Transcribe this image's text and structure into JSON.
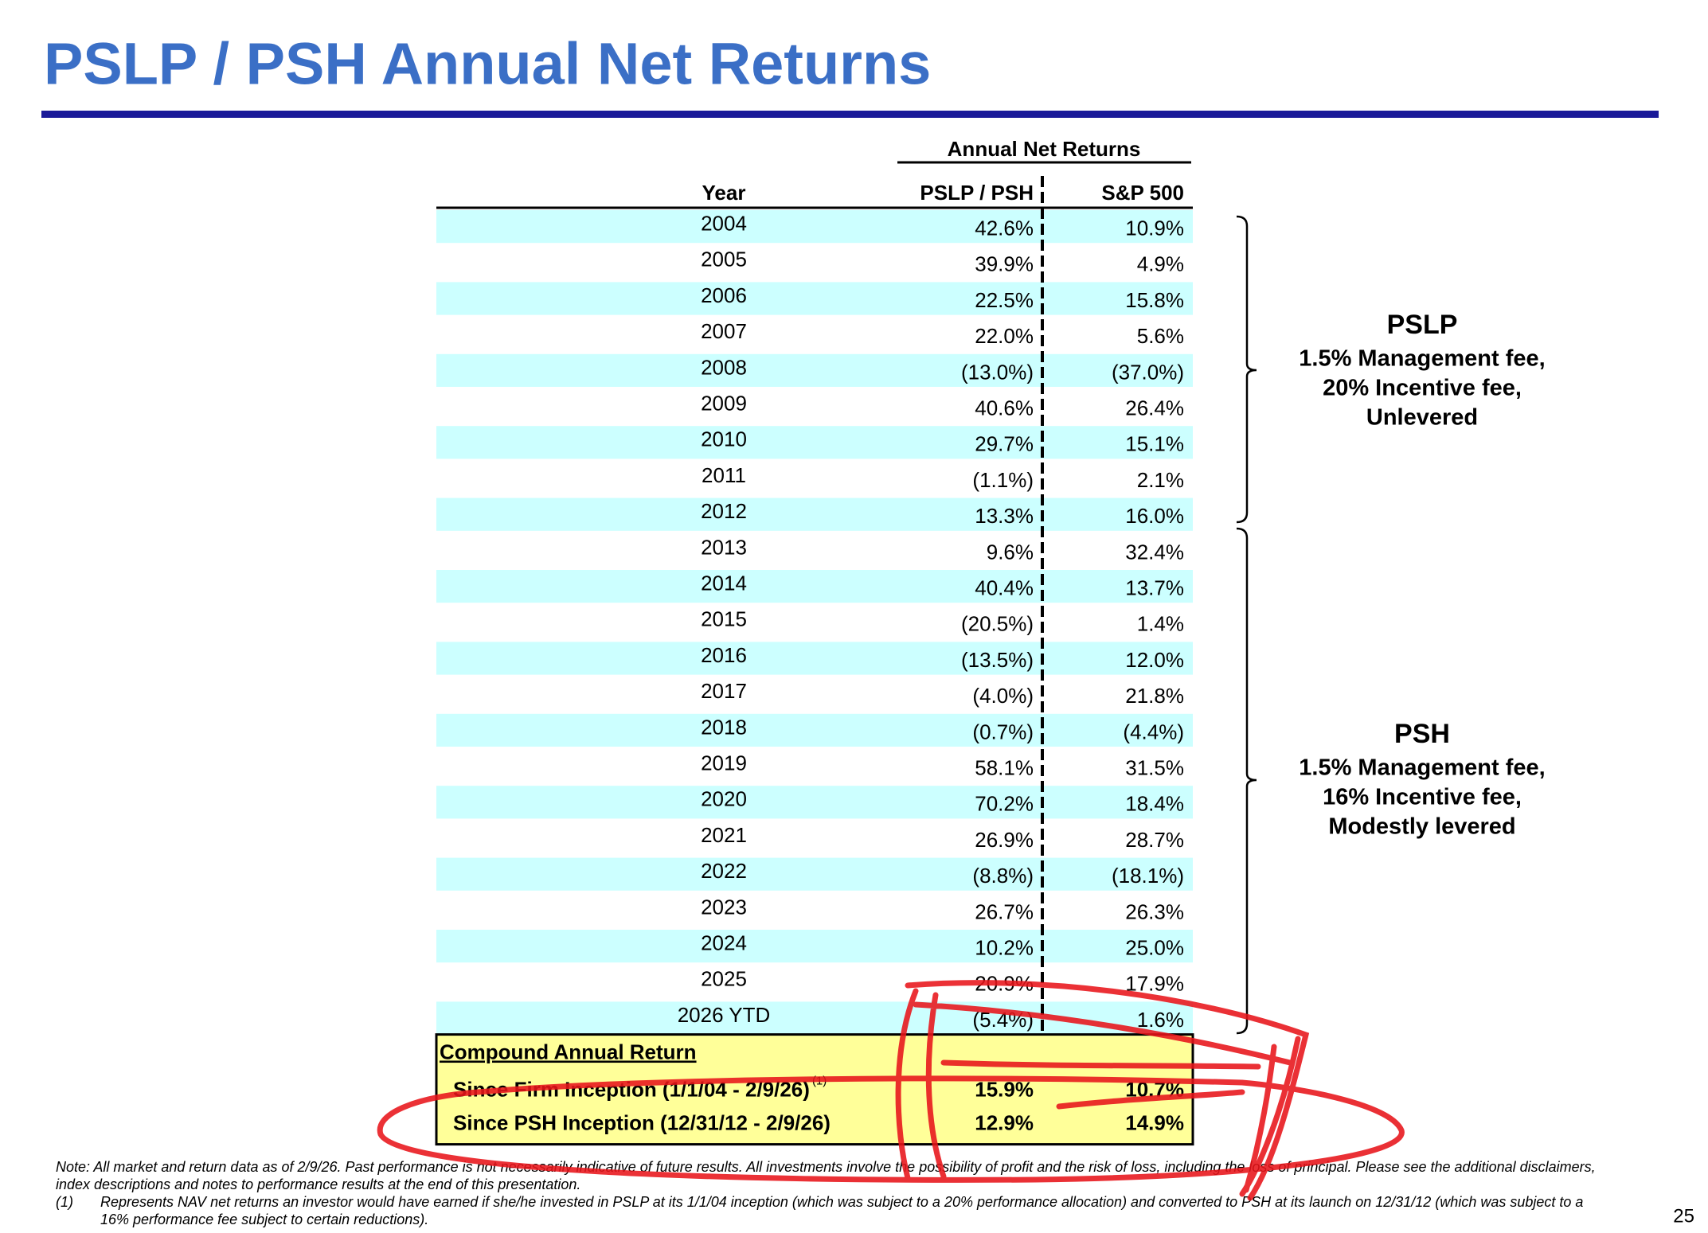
{
  "header": {
    "title": "PSLP / PSH Annual Net Returns"
  },
  "table": {
    "group_header": "Annual Net Returns",
    "columns": [
      "Year",
      "PSLP / PSH",
      "S&P 500"
    ],
    "rows": [
      [
        "2004",
        "42.6%",
        "10.9%"
      ],
      [
        "2005",
        "39.9%",
        "4.9%"
      ],
      [
        "2006",
        "22.5%",
        "15.8%"
      ],
      [
        "2007",
        "22.0%",
        "5.6%"
      ],
      [
        "2008",
        "(13.0%)",
        "(37.0%)"
      ],
      [
        "2009",
        "40.6%",
        "26.4%"
      ],
      [
        "2010",
        "29.7%",
        "15.1%"
      ],
      [
        "2011",
        "(1.1%)",
        "2.1%"
      ],
      [
        "2012",
        "13.3%",
        "16.0%"
      ],
      [
        "2013",
        "9.6%",
        "32.4%"
      ],
      [
        "2014",
        "40.4%",
        "13.7%"
      ],
      [
        "2015",
        "(20.5%)",
        "1.4%"
      ],
      [
        "2016",
        "(13.5%)",
        "12.0%"
      ],
      [
        "2017",
        "(4.0%)",
        "21.8%"
      ],
      [
        "2018",
        "(0.7%)",
        "(4.4%)"
      ],
      [
        "2019",
        "58.1%",
        "31.5%"
      ],
      [
        "2020",
        "70.2%",
        "18.4%"
      ],
      [
        "2021",
        "26.9%",
        "28.7%"
      ],
      [
        "2022",
        "(8.8%)",
        "(18.1%)"
      ],
      [
        "2023",
        "26.7%",
        "26.3%"
      ],
      [
        "2024",
        "10.2%",
        "25.0%"
      ],
      [
        "2025",
        "20.9%",
        "17.9%"
      ],
      [
        "2026 YTD",
        "(5.4%)",
        "1.6%"
      ]
    ],
    "compound": {
      "title": "Compound Annual Return",
      "rows": [
        {
          "label": "Since Firm Inception (1/1/04 - 2/9/26)",
          "footnote": "(1)",
          "pslp": "15.9%",
          "sp": "10.7%"
        },
        {
          "label": "Since PSH Inception (12/31/12 - 2/9/26)",
          "pslp": "12.9%",
          "sp": "14.9%"
        }
      ]
    }
  },
  "groups": [
    {
      "name": "PSLP",
      "lines": [
        "1.5% Management fee,",
        "20% Incentive fee,",
        "Unlevered"
      ]
    },
    {
      "name": "PSH",
      "lines": [
        "1.5% Management fee,",
        "16% Incentive fee,",
        "Modestly levered"
      ]
    }
  ],
  "notes": {
    "note_lines": [
      "Note: All market and return data as of 2/9/26. Past performance is not necessarily indicative of future results. All investments involve the possibility of profit and the risk of loss, including the loss of principal. Please see the additional disclaimers,",
      "index descriptions and notes to performance results at the end of this presentation."
    ],
    "footnote_marker": "(1)",
    "footnote_lines": [
      "Represents NAV net returns an investor would have earned if she/he invested in PSLP at its 1/1/04 inception (which was subject to a 20% performance allocation) and converted to PSH at its launch on 12/31/12 (which was subject to a",
      "16% performance fee subject to certain reductions)."
    ]
  },
  "page_number": "25"
}
